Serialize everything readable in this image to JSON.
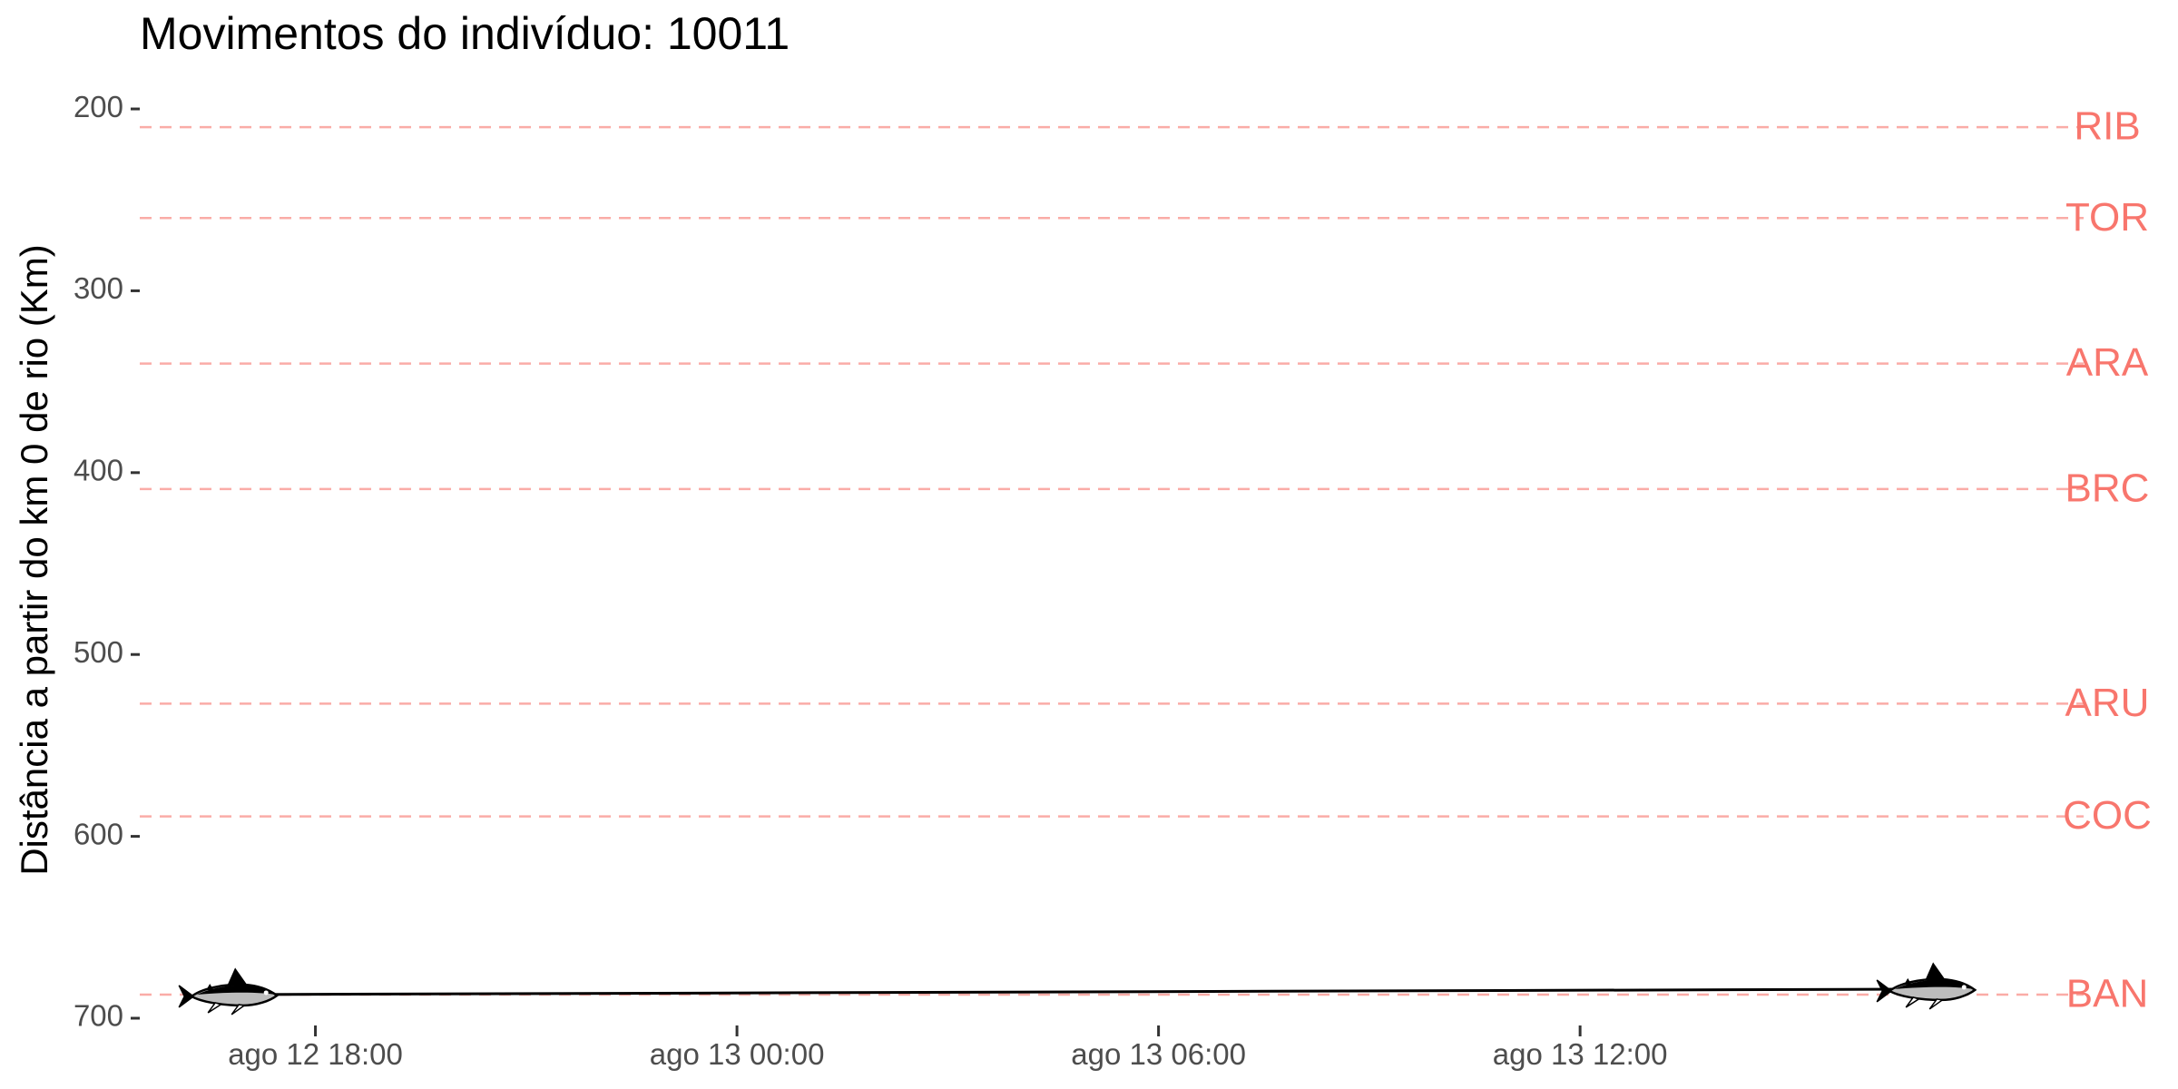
{
  "chart_data": {
    "type": "line",
    "title": "Movimentos do indivíduo: 10011",
    "xlabel": "",
    "ylabel": "Distância a partir do km 0 de rio (Km)",
    "y_reversed": true,
    "ylim": [
      700,
      190
    ],
    "y_ticks": [
      200,
      300,
      400,
      500,
      600,
      700
    ],
    "xlim": [
      "2000-08-12 15:30",
      "2000-08-13 19:10"
    ],
    "x_ticks": [
      {
        "value": "2000-08-12 18:00",
        "label": "ago 12 18:00"
      },
      {
        "value": "2000-08-13 00:00",
        "label": "ago 13 00:00"
      },
      {
        "value": "2000-08-13 06:00",
        "label": "ago 13 06:00"
      },
      {
        "value": "2000-08-13 12:00",
        "label": "ago 13 12:00"
      }
    ],
    "grid": false,
    "reference_lines": [
      {
        "name": "RIB",
        "y": 210
      },
      {
        "name": "TOR",
        "y": 260
      },
      {
        "name": "ARA",
        "y": 340
      },
      {
        "name": "BRC",
        "y": 409
      },
      {
        "name": "ARU",
        "y": 527
      },
      {
        "name": "COC",
        "y": 589
      },
      {
        "name": "BAN",
        "y": 687
      }
    ],
    "reference_line_color": "#f8766d",
    "series": [
      {
        "x": [
          "2000-08-12 16:50",
          "2000-08-13 17:00"
        ],
        "y": [
          687,
          684
        ],
        "color": "#000000"
      }
    ],
    "markers": [
      {
        "x": "2000-08-12 16:50",
        "y": 687,
        "icon": "fish-icon"
      },
      {
        "x": "2000-08-13 17:00",
        "y": 684,
        "icon": "fish-icon"
      }
    ]
  }
}
